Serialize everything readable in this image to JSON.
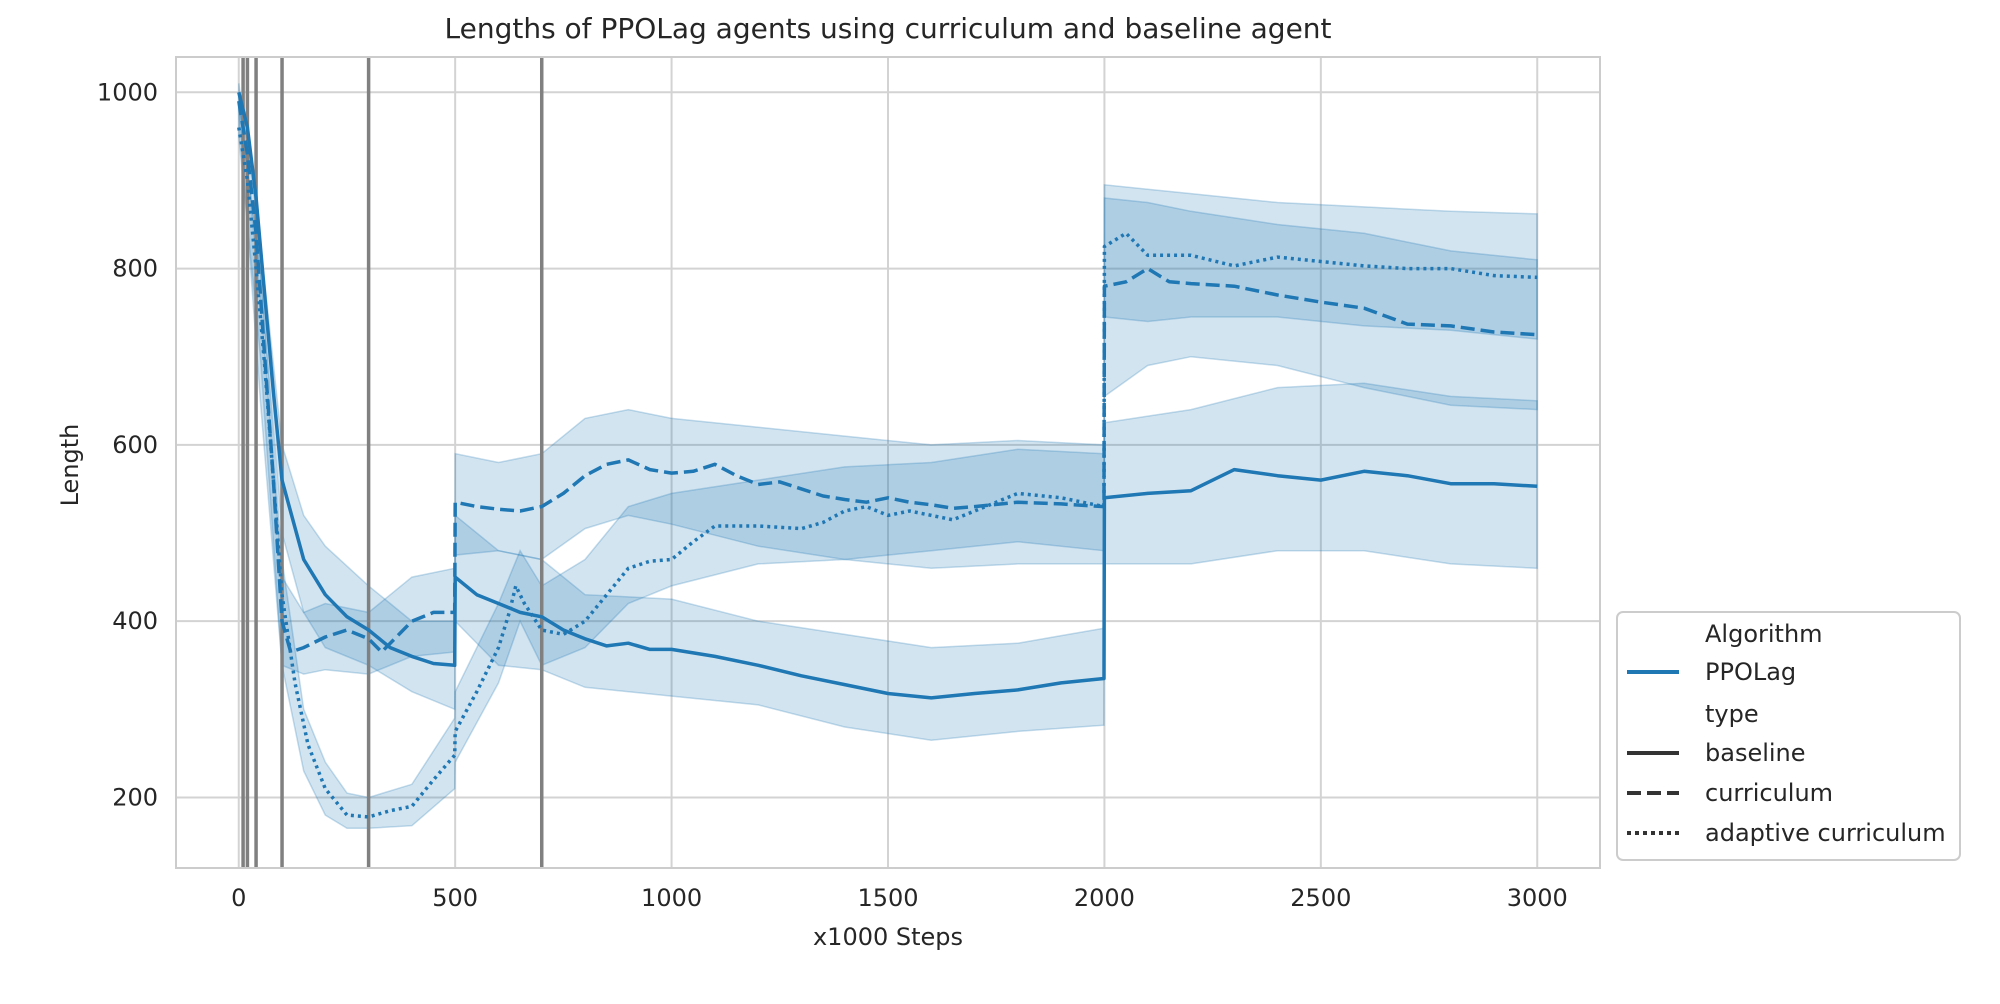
{
  "chart_data": {
    "type": "line",
    "title": "Lengths of PPOLag agents using curriculum and baseline agent",
    "xlabel": "x1000 Steps",
    "ylabel": "Length",
    "xlim": [
      -145,
      3145
    ],
    "ylim": [
      120,
      1040
    ],
    "xticks": [
      0,
      500,
      1000,
      1500,
      2000,
      2500,
      3000
    ],
    "yticks": [
      200,
      400,
      600,
      800,
      1000
    ],
    "grid": true,
    "vertical_markers": [
      10,
      20,
      40,
      100,
      300,
      700
    ],
    "legend": {
      "placement": "right, lower",
      "groups": [
        {
          "title": "Algorithm",
          "entries": [
            {
              "label": "PPOLag",
              "style": "solid",
              "color": "#1f77b4"
            }
          ]
        },
        {
          "title": "type",
          "entries": [
            {
              "label": "baseline",
              "style": "solid",
              "color": "#333333"
            },
            {
              "label": "curriculum",
              "style": "dashed",
              "color": "#333333"
            },
            {
              "label": "adaptive curriculum",
              "style": "dotted",
              "color": "#333333"
            }
          ]
        }
      ]
    },
    "series": [
      {
        "name": "baseline",
        "style": "solid",
        "color": "#1f77b4",
        "points": [
          [
            0,
            1000
          ],
          [
            20,
            960
          ],
          [
            40,
            880
          ],
          [
            60,
            770
          ],
          [
            80,
            660
          ],
          [
            100,
            560
          ],
          [
            150,
            470
          ],
          [
            200,
            430
          ],
          [
            250,
            405
          ],
          [
            300,
            390
          ],
          [
            350,
            370
          ],
          [
            400,
            360
          ],
          [
            450,
            352
          ],
          [
            499,
            350
          ],
          [
            500,
            450
          ],
          [
            550,
            430
          ],
          [
            600,
            420
          ],
          [
            650,
            410
          ],
          [
            700,
            405
          ],
          [
            750,
            390
          ],
          [
            800,
            380
          ],
          [
            850,
            372
          ],
          [
            900,
            375
          ],
          [
            950,
            368
          ],
          [
            1000,
            368
          ],
          [
            1100,
            360
          ],
          [
            1200,
            350
          ],
          [
            1300,
            338
          ],
          [
            1400,
            328
          ],
          [
            1500,
            318
          ],
          [
            1600,
            313
          ],
          [
            1700,
            318
          ],
          [
            1800,
            322
          ],
          [
            1900,
            330
          ],
          [
            1999,
            335
          ],
          [
            2000,
            540
          ],
          [
            2100,
            545
          ],
          [
            2200,
            548
          ],
          [
            2300,
            572
          ],
          [
            2400,
            565
          ],
          [
            2500,
            560
          ],
          [
            2600,
            570
          ],
          [
            2700,
            565
          ],
          [
            2800,
            556
          ],
          [
            2900,
            556
          ],
          [
            3000,
            553
          ]
        ],
        "band": [
          [
            0,
            990,
            1010
          ],
          [
            50,
            790,
            830
          ],
          [
            100,
            500,
            600
          ],
          [
            150,
            410,
            520
          ],
          [
            200,
            370,
            485
          ],
          [
            300,
            350,
            440
          ],
          [
            400,
            320,
            400
          ],
          [
            499,
            300,
            400
          ],
          [
            500,
            400,
            520
          ],
          [
            600,
            350,
            480
          ],
          [
            700,
            345,
            470
          ],
          [
            800,
            325,
            430
          ],
          [
            1000,
            315,
            425
          ],
          [
            1200,
            305,
            400
          ],
          [
            1400,
            280,
            385
          ],
          [
            1600,
            265,
            370
          ],
          [
            1800,
            275,
            375
          ],
          [
            1999,
            282,
            392
          ],
          [
            2000,
            465,
            625
          ],
          [
            2200,
            465,
            640
          ],
          [
            2400,
            480,
            665
          ],
          [
            2600,
            480,
            670
          ],
          [
            2800,
            465,
            655
          ],
          [
            3000,
            460,
            650
          ]
        ]
      },
      {
        "name": "curriculum",
        "style": "dashed",
        "color": "#1f77b4",
        "points": [
          [
            0,
            990
          ],
          [
            20,
            930
          ],
          [
            40,
            840
          ],
          [
            60,
            700
          ],
          [
            80,
            560
          ],
          [
            100,
            400
          ],
          [
            120,
            365
          ],
          [
            150,
            370
          ],
          [
            200,
            382
          ],
          [
            250,
            390
          ],
          [
            300,
            380
          ],
          [
            330,
            365
          ],
          [
            360,
            380
          ],
          [
            400,
            400
          ],
          [
            450,
            410
          ],
          [
            499,
            410
          ],
          [
            500,
            535
          ],
          [
            550,
            530
          ],
          [
            600,
            527
          ],
          [
            650,
            525
          ],
          [
            700,
            530
          ],
          [
            750,
            545
          ],
          [
            800,
            565
          ],
          [
            850,
            578
          ],
          [
            900,
            583
          ],
          [
            950,
            572
          ],
          [
            1000,
            568
          ],
          [
            1050,
            570
          ],
          [
            1100,
            578
          ],
          [
            1150,
            565
          ],
          [
            1200,
            555
          ],
          [
            1250,
            558
          ],
          [
            1300,
            550
          ],
          [
            1350,
            542
          ],
          [
            1400,
            538
          ],
          [
            1450,
            535
          ],
          [
            1500,
            540
          ],
          [
            1550,
            535
          ],
          [
            1600,
            532
          ],
          [
            1650,
            528
          ],
          [
            1700,
            530
          ],
          [
            1800,
            535
          ],
          [
            1900,
            533
          ],
          [
            1999,
            530
          ],
          [
            2000,
            780
          ],
          [
            2050,
            785
          ],
          [
            2100,
            800
          ],
          [
            2150,
            785
          ],
          [
            2200,
            783
          ],
          [
            2300,
            780
          ],
          [
            2400,
            770
          ],
          [
            2500,
            762
          ],
          [
            2600,
            755
          ],
          [
            2700,
            737
          ],
          [
            2800,
            735
          ],
          [
            2900,
            728
          ],
          [
            3000,
            725
          ]
        ],
        "band": [
          [
            0,
            980,
            1000
          ],
          [
            50,
            650,
            770
          ],
          [
            100,
            350,
            450
          ],
          [
            150,
            340,
            410
          ],
          [
            200,
            345,
            420
          ],
          [
            300,
            340,
            410
          ],
          [
            400,
            360,
            450
          ],
          [
            499,
            365,
            460
          ],
          [
            500,
            475,
            590
          ],
          [
            600,
            480,
            580
          ],
          [
            700,
            470,
            590
          ],
          [
            800,
            505,
            630
          ],
          [
            900,
            520,
            640
          ],
          [
            1000,
            510,
            630
          ],
          [
            1200,
            485,
            620
          ],
          [
            1400,
            470,
            610
          ],
          [
            1600,
            460,
            600
          ],
          [
            1800,
            465,
            605
          ],
          [
            1999,
            465,
            600
          ],
          [
            2000,
            655,
            880
          ],
          [
            2100,
            690,
            875
          ],
          [
            2200,
            700,
            865
          ],
          [
            2400,
            690,
            850
          ],
          [
            2600,
            665,
            840
          ],
          [
            2800,
            645,
            820
          ],
          [
            3000,
            640,
            810
          ]
        ]
      },
      {
        "name": "adaptive curriculum",
        "style": "dotted",
        "color": "#1f77b4",
        "points": [
          [
            0,
            960
          ],
          [
            20,
            900
          ],
          [
            40,
            800
          ],
          [
            60,
            690
          ],
          [
            80,
            560
          ],
          [
            100,
            430
          ],
          [
            130,
            330
          ],
          [
            160,
            260
          ],
          [
            200,
            210
          ],
          [
            250,
            180
          ],
          [
            300,
            178
          ],
          [
            350,
            185
          ],
          [
            400,
            190
          ],
          [
            450,
            220
          ],
          [
            499,
            248
          ],
          [
            500,
            275
          ],
          [
            550,
            320
          ],
          [
            600,
            370
          ],
          [
            625,
            410
          ],
          [
            640,
            440
          ],
          [
            660,
            420
          ],
          [
            700,
            390
          ],
          [
            750,
            385
          ],
          [
            800,
            400
          ],
          [
            850,
            430
          ],
          [
            900,
            460
          ],
          [
            950,
            468
          ],
          [
            1000,
            470
          ],
          [
            1050,
            490
          ],
          [
            1100,
            508
          ],
          [
            1200,
            508
          ],
          [
            1300,
            505
          ],
          [
            1350,
            512
          ],
          [
            1400,
            525
          ],
          [
            1450,
            530
          ],
          [
            1500,
            520
          ],
          [
            1550,
            525
          ],
          [
            1600,
            520
          ],
          [
            1650,
            515
          ],
          [
            1700,
            525
          ],
          [
            1800,
            545
          ],
          [
            1900,
            540
          ],
          [
            1999,
            530
          ],
          [
            2000,
            825
          ],
          [
            2050,
            840
          ],
          [
            2100,
            815
          ],
          [
            2200,
            815
          ],
          [
            2300,
            803
          ],
          [
            2400,
            813
          ],
          [
            2500,
            808
          ],
          [
            2600,
            803
          ],
          [
            2700,
            800
          ],
          [
            2800,
            800
          ],
          [
            2900,
            792
          ],
          [
            3000,
            790
          ]
        ],
        "band": [
          [
            0,
            950,
            990
          ],
          [
            50,
            700,
            800
          ],
          [
            100,
            350,
            470
          ],
          [
            150,
            230,
            300
          ],
          [
            200,
            180,
            240
          ],
          [
            250,
            165,
            205
          ],
          [
            300,
            165,
            200
          ],
          [
            400,
            168,
            215
          ],
          [
            499,
            210,
            290
          ],
          [
            500,
            240,
            320
          ],
          [
            600,
            330,
            420
          ],
          [
            650,
            400,
            480
          ],
          [
            700,
            350,
            440
          ],
          [
            800,
            370,
            470
          ],
          [
            900,
            420,
            530
          ],
          [
            1000,
            440,
            545
          ],
          [
            1200,
            465,
            560
          ],
          [
            1400,
            470,
            575
          ],
          [
            1600,
            480,
            580
          ],
          [
            1800,
            490,
            595
          ],
          [
            1999,
            480,
            590
          ],
          [
            2000,
            745,
            895
          ],
          [
            2100,
            740,
            890
          ],
          [
            2200,
            745,
            885
          ],
          [
            2400,
            745,
            875
          ],
          [
            2600,
            735,
            870
          ],
          [
            2800,
            730,
            865
          ],
          [
            3000,
            720,
            862
          ]
        ]
      }
    ]
  }
}
